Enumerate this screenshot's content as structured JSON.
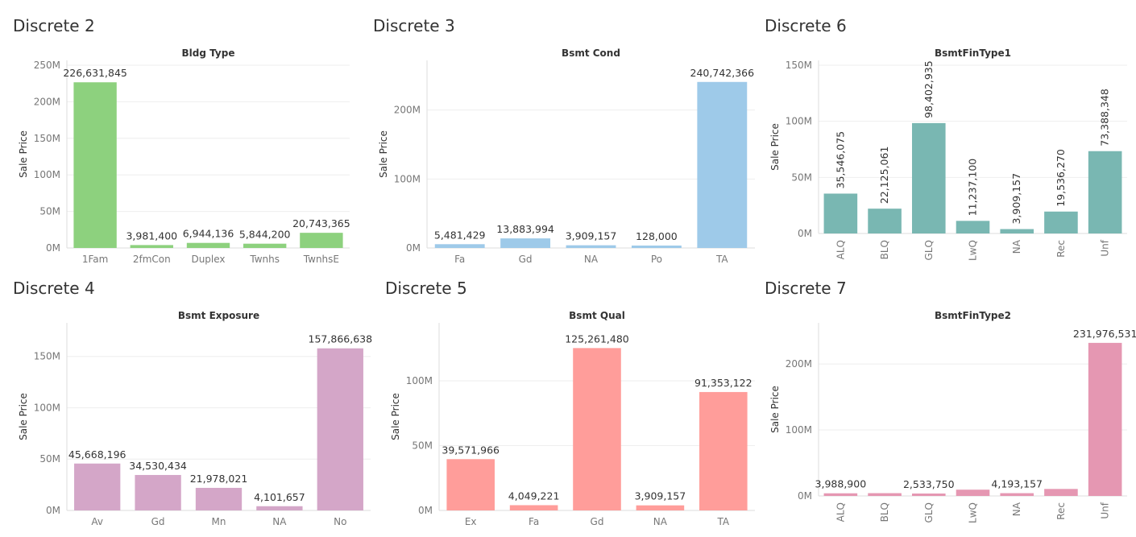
{
  "charts": [
    {
      "id": "c1",
      "panel_title": "Discrete 2",
      "chart_data": {
        "type": "bar",
        "title": "Bldg Type",
        "ylabel": "Sale Price",
        "xlabel": "",
        "categories": [
          "1Fam",
          "2fmCon",
          "Duplex",
          "Twnhs",
          "TwnhsE"
        ],
        "values": [
          226631845,
          3981400,
          6944136,
          5844200,
          20743365
        ],
        "labels": [
          "226,631,845",
          "3,981,400",
          "6,944,136",
          "5,844,200",
          "20,743,365"
        ],
        "ylim": [
          0,
          250000000
        ],
        "yticks": [
          0,
          50000000,
          100000000,
          150000000,
          200000000,
          250000000
        ],
        "ytick_labels": [
          "0M",
          "50M",
          "100M",
          "150M",
          "200M",
          "250M"
        ],
        "color": "#8dd17e",
        "rotate_labels": false,
        "grid": true
      }
    },
    {
      "id": "c2",
      "panel_title": "Discrete 3",
      "chart_data": {
        "type": "bar",
        "title": "Bsmt Cond",
        "ylabel": "Sale Price",
        "xlabel": "",
        "categories": [
          "Fa",
          "Gd",
          "NA",
          "Po",
          "TA"
        ],
        "values": [
          5481429,
          13883994,
          3909157,
          128000,
          240742366
        ],
        "labels": [
          "5,481,429",
          "13,883,994",
          "3,909,157",
          "128,000",
          "240,742,366"
        ],
        "ylim": [
          0,
          265000000
        ],
        "yticks": [
          0,
          100000000,
          200000000
        ],
        "ytick_labels": [
          "0M",
          "100M",
          "200M"
        ],
        "color": "#9ecae9",
        "rotate_labels": false,
        "grid": true
      }
    },
    {
      "id": "c3",
      "panel_title": "Discrete 6",
      "chart_data": {
        "type": "bar",
        "title": "BsmtFinType1",
        "ylabel": "Sale Price",
        "xlabel": "",
        "categories": [
          "ALQ",
          "BLQ",
          "GLQ",
          "LwQ",
          "NA",
          "Rec",
          "Unf"
        ],
        "values": [
          35546075,
          22125061,
          98402935,
          11237100,
          3909157,
          19536270,
          73388348
        ],
        "labels": [
          "35,546,075",
          "22,125,061",
          "98,402,935",
          "11,237,100",
          "3,909,157",
          "19,536,270",
          "73,388,348"
        ],
        "ylim": [
          0,
          150000000
        ],
        "yticks": [
          0,
          50000000,
          100000000,
          150000000
        ],
        "ytick_labels": [
          "0M",
          "50M",
          "100M",
          "150M"
        ],
        "color": "#79b7b2",
        "rotate_labels": true,
        "grid": true
      }
    },
    {
      "id": "c4",
      "panel_title": "Discrete 4",
      "chart_data": {
        "type": "bar",
        "title": "Bsmt Exposure",
        "ylabel": "Sale Price",
        "xlabel": "",
        "categories": [
          "Av",
          "Gd",
          "Mn",
          "NA",
          "No"
        ],
        "values": [
          45668196,
          34530434,
          21978021,
          4101657,
          157866638
        ],
        "labels": [
          "45,668,196",
          "34,530,434",
          "21,978,021",
          "4,101,657",
          "157,866,638"
        ],
        "ylim": [
          0,
          178000000
        ],
        "yticks": [
          0,
          50000000,
          100000000,
          150000000
        ],
        "ytick_labels": [
          "0M",
          "50M",
          "100M",
          "150M"
        ],
        "color": "#d4a6c8",
        "rotate_labels": false,
        "grid": true
      }
    },
    {
      "id": "c5",
      "panel_title": "Discrete 5",
      "chart_data": {
        "type": "bar",
        "title": "Bsmt Qual",
        "ylabel": "Sale Price",
        "xlabel": "",
        "categories": [
          "Ex",
          "Fa",
          "Gd",
          "NA",
          "TA"
        ],
        "values": [
          39571966,
          4049221,
          125261480,
          3909157,
          91353122
        ],
        "labels": [
          "39,571,966",
          "4,049,221",
          "125,261,480",
          "3,909,157",
          "91,353,122"
        ],
        "ylim": [
          0,
          141000000
        ],
        "yticks": [
          0,
          50000000,
          100000000
        ],
        "ytick_labels": [
          "0M",
          "50M",
          "100M"
        ],
        "color": "#ff9d9a",
        "rotate_labels": false,
        "grid": true
      }
    },
    {
      "id": "c6",
      "panel_title": "Discrete 7",
      "chart_data": {
        "type": "bar",
        "title": "BsmtFinType2",
        "ylabel": "Sale Price",
        "xlabel": "",
        "categories": [
          "ALQ",
          "BLQ",
          "GLQ",
          "LwQ",
          "NA",
          "Rec",
          "Unf"
        ],
        "values": [
          3988900,
          4200000,
          2533750,
          9500000,
          4193157,
          10600000,
          231976531
        ],
        "labels": [
          "3,988,900",
          "",
          "2,533,750",
          "",
          "4,193,157",
          "",
          "231,976,531"
        ],
        "ylim": [
          0,
          255000000
        ],
        "yticks": [
          0,
          100000000,
          200000000
        ],
        "ytick_labels": [
          "0M",
          "100M",
          "200M"
        ],
        "color": "#e597b2",
        "rotate_labels": true,
        "grid": true
      }
    }
  ]
}
